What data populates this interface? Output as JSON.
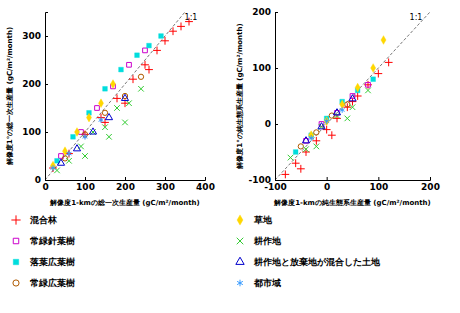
{
  "chart_data": [
    {
      "type": "scatter",
      "xlabel": "解像度1-kmの総一次生産量 (gC/m²/month)",
      "ylabel": "解像度1°の総一次生産量 (gC/m²/month)",
      "annotation": "1:1",
      "xlim": [
        0,
        400
      ],
      "ylim": [
        0,
        350
      ],
      "xticks": [
        0,
        100,
        200,
        300,
        400
      ],
      "yticks": [
        0,
        100,
        200,
        300
      ],
      "series": [
        {
          "name": "混合林",
          "color": "#ff0000",
          "marker": "plus",
          "x": [
            20,
            60,
            100,
            140,
            180,
            220,
            250,
            280,
            300,
            320,
            340,
            360,
            200,
            260,
            150
          ],
          "y": [
            25,
            55,
            95,
            130,
            170,
            210,
            240,
            270,
            290,
            310,
            320,
            330,
            160,
            230,
            120
          ]
        },
        {
          "name": "常緑針葉樹",
          "color": "#cc00cc",
          "marker": "square-open",
          "x": [
            40,
            90,
            130,
            170,
            210,
            250
          ],
          "y": [
            50,
            100,
            150,
            195,
            240,
            270
          ]
        },
        {
          "name": "落葉広葉樹",
          "color": "#00dddd",
          "marker": "square",
          "x": [
            30,
            70,
            110,
            150,
            190,
            230,
            260,
            290
          ],
          "y": [
            40,
            90,
            140,
            190,
            230,
            260,
            280,
            300
          ]
        },
        {
          "name": "常緑広葉樹",
          "color": "#b05a00",
          "marker": "circle-open",
          "x": [
            50,
            100,
            150,
            200,
            240
          ],
          "y": [
            45,
            95,
            140,
            175,
            215
          ]
        },
        {
          "name": "草地",
          "color": "#ffd700",
          "marker": "diamond",
          "x": [
            20,
            50,
            80,
            110,
            140,
            170
          ],
          "y": [
            30,
            60,
            100,
            130,
            160,
            200
          ]
        },
        {
          "name": "耕作地",
          "color": "#33cc33",
          "marker": "x",
          "x": [
            30,
            60,
            90,
            120,
            150,
            180,
            210,
            240,
            100,
            160,
            200
          ],
          "y": [
            20,
            40,
            70,
            100,
            110,
            150,
            160,
            190,
            50,
            90,
            120
          ]
        },
        {
          "name": "耕作地と放棄地が混合した土地",
          "color": "#0000cc",
          "marker": "triangle-open",
          "x": [
            40,
            80,
            120,
            160,
            200
          ],
          "y": [
            35,
            65,
            100,
            130,
            170
          ]
        },
        {
          "name": "都市域",
          "color": "#3399ff",
          "marker": "asterisk",
          "x": [
            20,
            60,
            100,
            140
          ],
          "y": [
            25,
            55,
            90,
            125
          ]
        }
      ]
    },
    {
      "type": "scatter",
      "xlabel": "解像度1-kmの純生態系生産量 (gC/m²/month)",
      "ylabel": "解像度1°の純生態系生産量 (gC/m²/month)",
      "annotation": "1:1",
      "xlim": [
        -100,
        200
      ],
      "ylim": [
        -100,
        200
      ],
      "xticks": [
        -100,
        0,
        100,
        200
      ],
      "yticks": [
        -100,
        0,
        100,
        200
      ],
      "series": [
        {
          "color": "#ff0000",
          "marker": "plus",
          "x": [
            -80,
            -60,
            -40,
            -20,
            0,
            20,
            40,
            60,
            80,
            100,
            120,
            -50,
            10,
            50
          ],
          "y": [
            -90,
            -70,
            -50,
            -30,
            -10,
            10,
            30,
            50,
            70,
            90,
            110,
            -80,
            -20,
            40
          ]
        },
        {
          "color": "#cc00cc",
          "marker": "square-open",
          "x": [
            -40,
            -10,
            20,
            50,
            80
          ],
          "y": [
            -30,
            0,
            20,
            50,
            70
          ]
        },
        {
          "color": "#00dddd",
          "marker": "square",
          "x": [
            -60,
            -30,
            0,
            30,
            60,
            90
          ],
          "y": [
            -50,
            -20,
            10,
            40,
            60,
            80
          ]
        },
        {
          "color": "#b05a00",
          "marker": "circle-open",
          "x": [
            -50,
            -20,
            10,
            40
          ],
          "y": [
            -40,
            -15,
            15,
            35
          ]
        },
        {
          "color": "#ffd700",
          "marker": "diamond",
          "x": [
            -30,
            0,
            30,
            60,
            90,
            110
          ],
          "y": [
            -20,
            5,
            35,
            65,
            100,
            150
          ]
        },
        {
          "color": "#33cc33",
          "marker": "x",
          "x": [
            -70,
            -40,
            -10,
            20,
            50,
            80,
            -20,
            40
          ],
          "y": [
            -60,
            -45,
            -5,
            15,
            30,
            60,
            -40,
            10
          ]
        },
        {
          "color": "#0000cc",
          "marker": "triangle-open",
          "x": [
            -40,
            -10,
            20,
            50
          ],
          "y": [
            -30,
            -5,
            20,
            45
          ]
        },
        {
          "color": "#3399ff",
          "marker": "asterisk",
          "x": [
            -30,
            0,
            30
          ],
          "y": [
            -25,
            5,
            25
          ]
        }
      ]
    }
  ]
}
